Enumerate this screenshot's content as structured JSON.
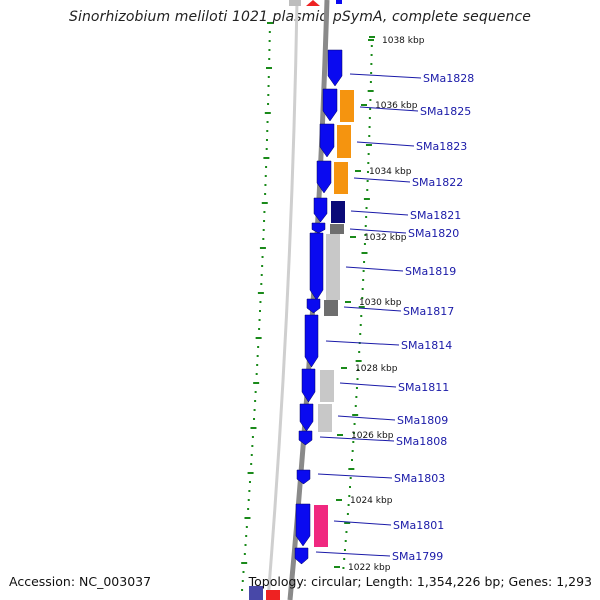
{
  "title": "Sinorhizobium meliloti 1021 plasmid pSymA, complete sequence",
  "footer": {
    "accession": "Accession: NC_003037",
    "summary": "Topology: circular; Length: 1,354,226 bp; Genes: 1,293"
  },
  "colors": {
    "strand_forward": "#0a0af0",
    "orange": "#f5940f",
    "navy": "#0a0a78",
    "light_gray": "#c8c8c8",
    "dark_gray": "#6e6e6e",
    "pink": "#f0287f",
    "backbone": "#8a8a8a",
    "tick": "#1a8a1a",
    "label": "#1a1aa8"
  },
  "kbp_ticks": [
    "1038 kbp",
    "1036 kbp",
    "1034 kbp",
    "1032 kbp",
    "1030 kbp",
    "1028 kbp",
    "1026 kbp",
    "1024 kbp",
    "1022 kbp"
  ],
  "genes": [
    {
      "label": "SMa1828",
      "strand": "forward"
    },
    {
      "label": "SMa1825",
      "strand": "forward",
      "partner_color": "orange"
    },
    {
      "label": "SMa1823",
      "strand": "forward",
      "partner_color": "orange"
    },
    {
      "label": "SMa1822",
      "strand": "forward",
      "partner_color": "orange"
    },
    {
      "label": "SMa1821",
      "strand": "forward",
      "partner_color": "navy"
    },
    {
      "label": "SMa1820",
      "strand": "forward",
      "partner_color": "dark_gray"
    },
    {
      "label": "SMa1819",
      "strand": "forward",
      "partner_color": "light_gray"
    },
    {
      "label": "SMa1817",
      "strand": "forward",
      "partner_color": "dark_gray"
    },
    {
      "label": "SMa1814",
      "strand": "forward"
    },
    {
      "label": "SMa1811",
      "strand": "forward",
      "partner_color": "light_gray"
    },
    {
      "label": "SMa1809",
      "strand": "forward",
      "partner_color": "light_gray"
    },
    {
      "label": "SMa1808",
      "strand": "forward"
    },
    {
      "label": "SMa1803",
      "strand": "forward"
    },
    {
      "label": "SMa1801",
      "strand": "forward",
      "partner_color": "pink"
    },
    {
      "label": "SMa1799",
      "strand": "forward"
    }
  ]
}
